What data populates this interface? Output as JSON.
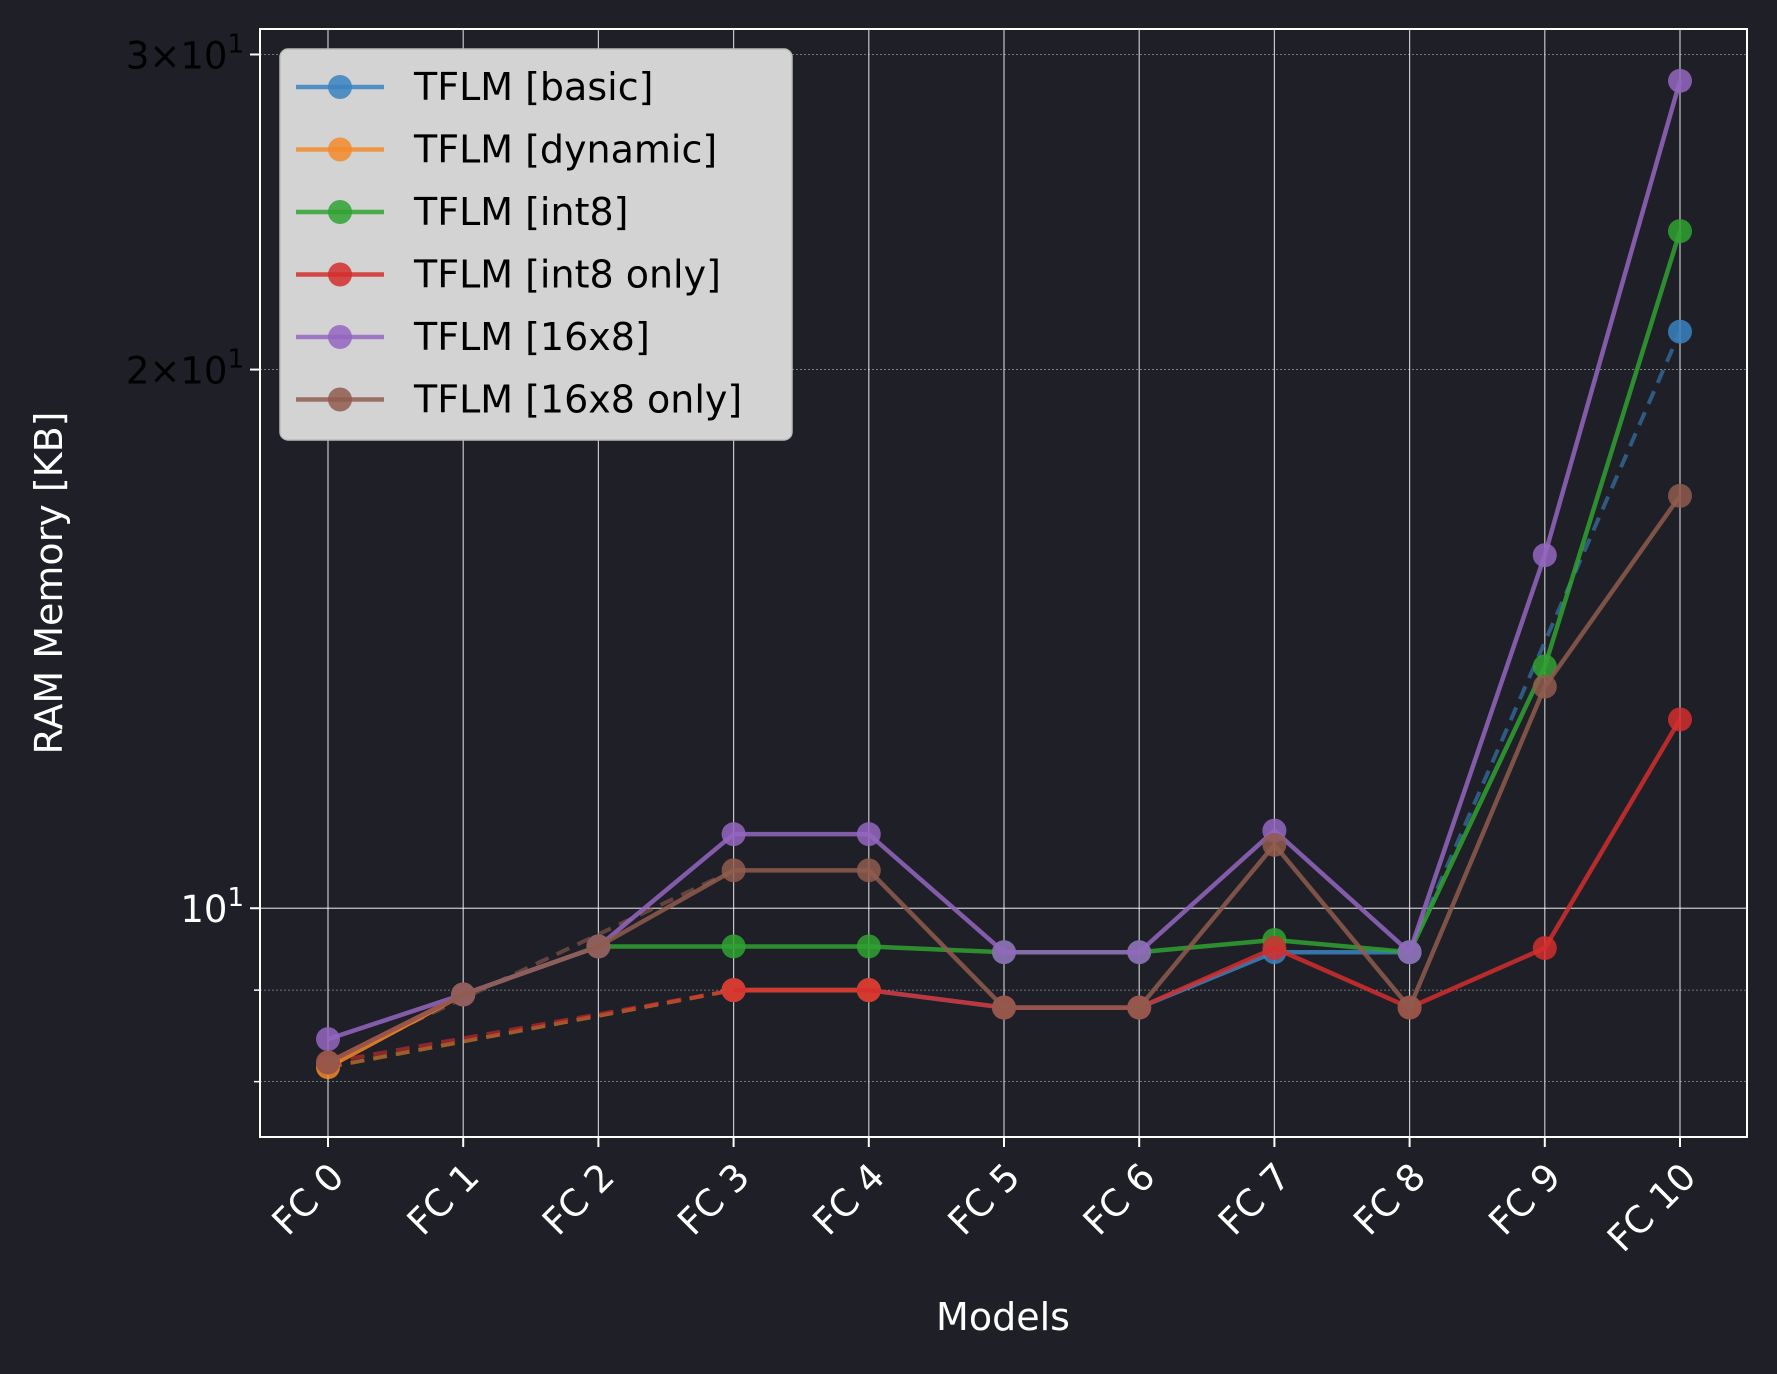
{
  "chart_data": {
    "type": "line",
    "xlabel": "Models",
    "ylabel": "RAM Memory [KB]",
    "yscale": "log",
    "ylim": [
      7.45,
      31.0
    ],
    "grid": true,
    "legend_position": "top-left",
    "categories": [
      "FC 0",
      "FC 1",
      "FC 2",
      "FC 3",
      "FC 4",
      "FC 5",
      "FC 6",
      "FC 7",
      "FC 8",
      "FC 9",
      "FC 10"
    ],
    "y_major_ticks": [
      {
        "value": 10,
        "base": "10",
        "exp": "1",
        "prefix": ""
      },
      {
        "value": 20,
        "base": "10",
        "exp": "1",
        "prefix": "2×"
      },
      {
        "value": 30,
        "base": "10",
        "exp": "1",
        "prefix": "3×"
      }
    ],
    "y_minor_ticks": [
      8,
      9
    ],
    "series": [
      {
        "name": "TFLM [basic]",
        "color": "#3a82bf",
        "values": [
          null,
          8.95,
          null,
          9.0,
          9.0,
          8.8,
          8.8,
          9.45,
          9.45,
          null,
          21.0
        ]
      },
      {
        "name": "TFLM [dynamic]",
        "color": "#f28b2b",
        "values": [
          8.15,
          8.95,
          null,
          9.0,
          9.0,
          null,
          null,
          null,
          null,
          null,
          null
        ]
      },
      {
        "name": "TFLM [int8]",
        "color": "#30a233",
        "values": [
          null,
          8.95,
          9.52,
          9.52,
          9.52,
          9.45,
          9.45,
          9.6,
          9.45,
          13.65,
          23.9
        ]
      },
      {
        "name": "TFLM [int8 only]",
        "color": "#d42e2e",
        "values": [
          8.2,
          8.95,
          null,
          9.0,
          9.0,
          8.8,
          8.8,
          9.5,
          8.8,
          9.5,
          12.75
        ]
      },
      {
        "name": "TFLM [16x8]",
        "color": "#9466c1",
        "values": [
          8.45,
          8.95,
          9.52,
          11.0,
          11.0,
          9.45,
          9.45,
          11.05,
          9.45,
          15.75,
          29.0
        ]
      },
      {
        "name": "TFLM [16x8 only]",
        "color": "#8f5c4d",
        "values": [
          8.2,
          8.95,
          9.52,
          10.5,
          10.5,
          8.8,
          8.8,
          10.85,
          8.8,
          13.3,
          17.0
        ]
      }
    ],
    "dashed_segments": [
      {
        "series": "TFLM [basic]",
        "x": [
          "FC 8",
          "FC 10"
        ],
        "y": [
          9.45,
          21.0
        ]
      },
      {
        "series": "TFLM [dynamic]",
        "x": [
          "FC 0",
          "FC 3"
        ],
        "y": [
          8.15,
          9.0
        ]
      },
      {
        "series": "TFLM [int8 only]",
        "x": [
          "FC 0",
          "FC 3"
        ],
        "y": [
          8.2,
          9.0
        ]
      },
      {
        "series": "TFLM [16x8 only]",
        "x": [
          "FC 0",
          "FC 3"
        ],
        "y": [
          8.2,
          10.5
        ]
      }
    ]
  }
}
